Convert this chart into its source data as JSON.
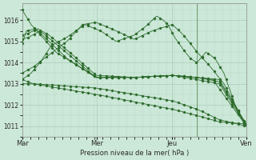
{
  "bg_color": "#cce8d8",
  "grid_color": "#aaccbb",
  "line_color": "#2d6b2d",
  "marker_color": "#2d6b2d",
  "xlabel": "Pression niveau de la mer( hPa )",
  "ylim": [
    1010.5,
    1016.8
  ],
  "yticks": [
    1011,
    1012,
    1013,
    1014,
    1015,
    1016
  ],
  "xtick_labels": [
    "Mar",
    "Mer",
    "Jeu",
    "Ven"
  ],
  "xtick_positions": [
    0.0,
    0.333,
    0.667,
    1.0
  ],
  "vline_x": 0.78,
  "figsize": [
    3.2,
    2.0
  ],
  "dpi": 100
}
